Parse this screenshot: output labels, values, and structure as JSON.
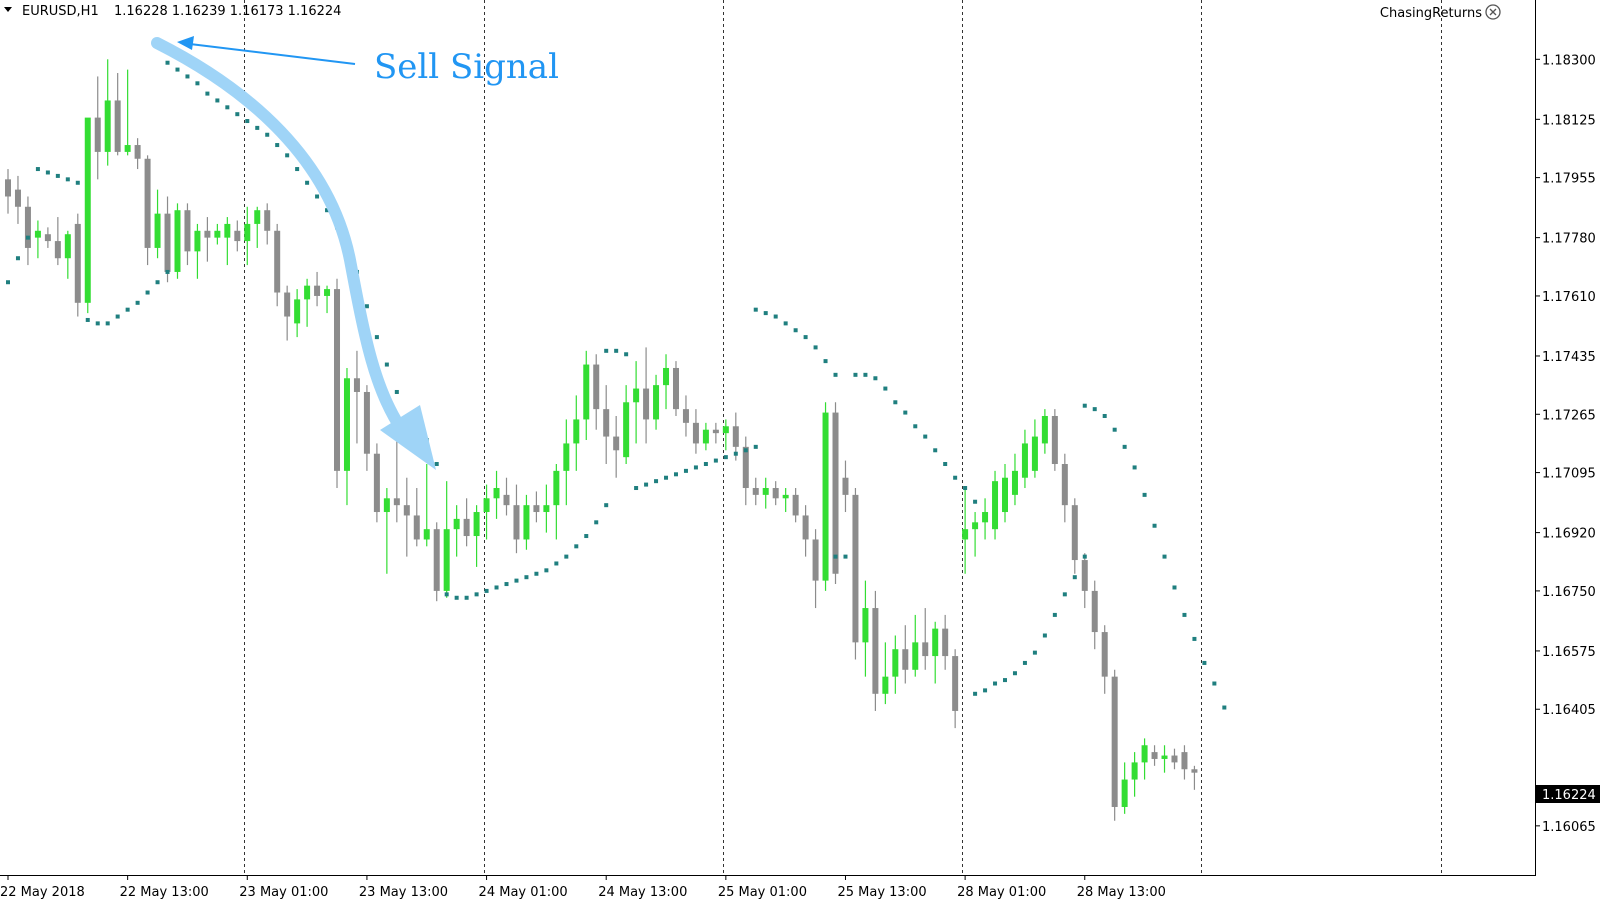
{
  "header": {
    "symbol": "EURUSD,H1",
    "ohlc": "1.16228 1.16239 1.16173 1.16224",
    "brand": "ChasingReturns"
  },
  "annotation": {
    "text": "Sell Signal"
  },
  "colors": {
    "bull": "#33dd33",
    "bear": "#8c8c8c",
    "sar": "#1f7f7f",
    "arrow": "#9fd4f7",
    "annotation": "#2196F3",
    "grid": "#333333"
  },
  "chart_data": {
    "type": "candlestick",
    "title": "",
    "ylim": [
      1.1598,
      1.184
    ],
    "y_ticks": [
      "1.18300",
      "1.18125",
      "1.17955",
      "1.17780",
      "1.17610",
      "1.17435",
      "1.17265",
      "1.17095",
      "1.16920",
      "1.16750",
      "1.16575",
      "1.16405",
      "1.16224",
      "1.16065"
    ],
    "current_price": "1.16224",
    "x_ticks": [
      {
        "label": "22 May 2018",
        "bar": 0
      },
      {
        "label": "22 May 13:00",
        "bar": 12
      },
      {
        "label": "23 May 01:00",
        "bar": 24
      },
      {
        "label": "23 May 13:00",
        "bar": 36
      },
      {
        "label": "24 May 01:00",
        "bar": 48
      },
      {
        "label": "24 May 13:00",
        "bar": 60
      },
      {
        "label": "25 May 01:00",
        "bar": 72
      },
      {
        "label": "25 May 13:00",
        "bar": 84
      },
      {
        "label": "28 May 01:00",
        "bar": 96
      },
      {
        "label": "28 May 13:00",
        "bar": 108
      }
    ],
    "period_separators": [
      23,
      47,
      71,
      95,
      119,
      143
    ],
    "bars_ohlc": [
      [
        1.1795,
        1.1798,
        1.1785,
        1.179
      ],
      [
        1.1792,
        1.1796,
        1.1782,
        1.1787
      ],
      [
        1.1787,
        1.179,
        1.177,
        1.1775
      ],
      [
        1.1778,
        1.1783,
        1.1772,
        1.178
      ],
      [
        1.1779,
        1.1781,
        1.1775,
        1.1777
      ],
      [
        1.1777,
        1.1784,
        1.177,
        1.1772
      ],
      [
        1.1772,
        1.178,
        1.1766,
        1.1779
      ],
      [
        1.1782,
        1.1785,
        1.1755,
        1.1759
      ],
      [
        1.1759,
        1.1812,
        1.1756,
        1.1813
      ],
      [
        1.1813,
        1.1825,
        1.1795,
        1.1803
      ],
      [
        1.1803,
        1.183,
        1.1799,
        1.1818
      ],
      [
        1.1818,
        1.1826,
        1.1802,
        1.1803
      ],
      [
        1.1803,
        1.1827,
        1.1802,
        1.1805
      ],
      [
        1.1805,
        1.1807,
        1.1798,
        1.1801
      ],
      [
        1.1801,
        1.1802,
        1.177,
        1.1775
      ],
      [
        1.1775,
        1.1792,
        1.1772,
        1.1785
      ],
      [
        1.1785,
        1.179,
        1.1765,
        1.1768
      ],
      [
        1.1768,
        1.1788,
        1.1766,
        1.1786
      ],
      [
        1.1786,
        1.1788,
        1.177,
        1.1774
      ],
      [
        1.1774,
        1.1782,
        1.1766,
        1.178
      ],
      [
        1.178,
        1.1784,
        1.1771,
        1.1778
      ],
      [
        1.1778,
        1.1782,
        1.1776,
        1.178
      ],
      [
        1.1778,
        1.1784,
        1.177,
        1.1782
      ],
      [
        1.178,
        1.1783,
        1.1774,
        1.1777
      ],
      [
        1.1777,
        1.1787,
        1.177,
        1.1782
      ],
      [
        1.1782,
        1.1787,
        1.1775,
        1.1786
      ],
      [
        1.1786,
        1.1788,
        1.1776,
        1.178
      ],
      [
        1.178,
        1.1782,
        1.1758,
        1.1762
      ],
      [
        1.1762,
        1.1764,
        1.1748,
        1.1755
      ],
      [
        1.1753,
        1.1763,
        1.1749,
        1.176
      ],
      [
        1.176,
        1.1766,
        1.1752,
        1.1764
      ],
      [
        1.1764,
        1.1768,
        1.1758,
        1.1761
      ],
      [
        1.1761,
        1.1764,
        1.1756,
        1.1763
      ],
      [
        1.1763,
        1.1766,
        1.1705,
        1.171
      ],
      [
        1.171,
        1.174,
        1.17,
        1.1737
      ],
      [
        1.1737,
        1.1745,
        1.1718,
        1.1733
      ],
      [
        1.1733,
        1.1735,
        1.171,
        1.1715
      ],
      [
        1.1715,
        1.1718,
        1.1695,
        1.1698
      ],
      [
        1.1698,
        1.1705,
        1.168,
        1.1702
      ],
      [
        1.1702,
        1.1722,
        1.1695,
        1.17
      ],
      [
        1.17,
        1.1708,
        1.1685,
        1.1697
      ],
      [
        1.1697,
        1.1705,
        1.1688,
        1.169
      ],
      [
        1.169,
        1.1712,
        1.1688,
        1.1693
      ],
      [
        1.1693,
        1.1695,
        1.1672,
        1.1675
      ],
      [
        1.1675,
        1.1707,
        1.1673,
        1.1693
      ],
      [
        1.1693,
        1.17,
        1.1685,
        1.1696
      ],
      [
        1.1696,
        1.1702,
        1.1688,
        1.1691
      ],
      [
        1.1691,
        1.17,
        1.1682,
        1.1698
      ],
      [
        1.1698,
        1.1706,
        1.169,
        1.1702
      ],
      [
        1.1702,
        1.171,
        1.1696,
        1.1705
      ],
      [
        1.1703,
        1.1708,
        1.1697,
        1.17
      ],
      [
        1.17,
        1.1706,
        1.1686,
        1.169
      ],
      [
        1.169,
        1.1703,
        1.1687,
        1.17
      ],
      [
        1.17,
        1.1704,
        1.1695,
        1.1698
      ],
      [
        1.1698,
        1.1706,
        1.1692,
        1.17
      ],
      [
        1.17,
        1.1712,
        1.169,
        1.171
      ],
      [
        1.171,
        1.1725,
        1.17,
        1.1718
      ],
      [
        1.1718,
        1.1732,
        1.171,
        1.1725
      ],
      [
        1.1725,
        1.1745,
        1.1719,
        1.1741
      ],
      [
        1.1741,
        1.1744,
        1.1722,
        1.1728
      ],
      [
        1.1728,
        1.1735,
        1.1712,
        1.172
      ],
      [
        1.172,
        1.1726,
        1.1708,
        1.1716
      ],
      [
        1.1714,
        1.1735,
        1.1712,
        1.173
      ],
      [
        1.173,
        1.1742,
        1.1718,
        1.1734
      ],
      [
        1.1734,
        1.1746,
        1.1718,
        1.1725
      ],
      [
        1.1725,
        1.1738,
        1.1722,
        1.1735
      ],
      [
        1.1735,
        1.1744,
        1.1728,
        1.174
      ],
      [
        1.174,
        1.1742,
        1.1726,
        1.1728
      ],
      [
        1.1728,
        1.1732,
        1.172,
        1.1724
      ],
      [
        1.1724,
        1.1728,
        1.1715,
        1.1718
      ],
      [
        1.1718,
        1.1724,
        1.1716,
        1.1722
      ],
      [
        1.1722,
        1.1724,
        1.1718,
        1.1721
      ],
      [
        1.1721,
        1.1725,
        1.1716,
        1.1723
      ],
      [
        1.1723,
        1.1727,
        1.1713,
        1.1717
      ],
      [
        1.1717,
        1.172,
        1.17,
        1.1705
      ],
      [
        1.1705,
        1.1708,
        1.17,
        1.1703
      ],
      [
        1.1703,
        1.1708,
        1.1699,
        1.1705
      ],
      [
        1.1705,
        1.1707,
        1.17,
        1.1702
      ],
      [
        1.1702,
        1.1705,
        1.1698,
        1.1703
      ],
      [
        1.1703,
        1.1705,
        1.1695,
        1.1697
      ],
      [
        1.1697,
        1.17,
        1.1685,
        1.169
      ],
      [
        1.169,
        1.1693,
        1.167,
        1.1678
      ],
      [
        1.1678,
        1.173,
        1.1675,
        1.1727
      ],
      [
        1.1727,
        1.173,
        1.1677,
        1.168
      ],
      [
        1.1708,
        1.1713,
        1.1698,
        1.1703
      ],
      [
        1.1703,
        1.1705,
        1.1655,
        1.166
      ],
      [
        1.166,
        1.1678,
        1.165,
        1.167
      ],
      [
        1.167,
        1.1675,
        1.164,
        1.1645
      ],
      [
        1.1645,
        1.166,
        1.1642,
        1.165
      ],
      [
        1.165,
        1.1662,
        1.1645,
        1.1658
      ],
      [
        1.1658,
        1.1665,
        1.1648,
        1.1652
      ],
      [
        1.1652,
        1.1668,
        1.165,
        1.166
      ],
      [
        1.166,
        1.167,
        1.1652,
        1.1656
      ],
      [
        1.1656,
        1.1666,
        1.1648,
        1.1664
      ],
      [
        1.1664,
        1.1668,
        1.1652,
        1.1656
      ],
      [
        1.1656,
        1.1658,
        1.1635,
        1.164
      ],
      [
        1.169,
        1.1705,
        1.168,
        1.1693
      ],
      [
        1.1693,
        1.1698,
        1.1685,
        1.1695
      ],
      [
        1.1695,
        1.1702,
        1.169,
        1.1698
      ],
      [
        1.1693,
        1.171,
        1.169,
        1.1707
      ],
      [
        1.1698,
        1.1712,
        1.1695,
        1.1708
      ],
      [
        1.1703,
        1.1715,
        1.17,
        1.171
      ],
      [
        1.1708,
        1.1722,
        1.1705,
        1.1718
      ],
      [
        1.171,
        1.1725,
        1.1708,
        1.172
      ],
      [
        1.1718,
        1.1728,
        1.1715,
        1.1726
      ],
      [
        1.1726,
        1.1728,
        1.171,
        1.1712
      ],
      [
        1.1712,
        1.1715,
        1.1695,
        1.17
      ],
      [
        1.17,
        1.1702,
        1.168,
        1.1684
      ],
      [
        1.1684,
        1.1686,
        1.167,
        1.1675
      ],
      [
        1.1675,
        1.1678,
        1.1658,
        1.1663
      ],
      [
        1.1663,
        1.1665,
        1.1645,
        1.165
      ],
      [
        1.165,
        1.1652,
        1.1608,
        1.1612
      ],
      [
        1.1612,
        1.1625,
        1.161,
        1.162
      ],
      [
        1.162,
        1.1628,
        1.1615,
        1.1625
      ],
      [
        1.1625,
        1.1632,
        1.162,
        1.163
      ],
      [
        1.1628,
        1.163,
        1.1624,
        1.1626
      ],
      [
        1.1626,
        1.163,
        1.1622,
        1.1627
      ],
      [
        1.1627,
        1.1629,
        1.1623,
        1.1625
      ],
      [
        1.1628,
        1.163,
        1.162,
        1.1623
      ],
      [
        1.1623,
        1.1624,
        1.1617,
        1.1622
      ]
    ],
    "sar_points": [
      [
        0,
        1.1765
      ],
      [
        1,
        1.1772
      ],
      [
        2,
        1.1778
      ],
      [
        3,
        1.1798
      ],
      [
        4,
        1.1797
      ],
      [
        5,
        1.1796
      ],
      [
        6,
        1.1795
      ],
      [
        7,
        1.1794
      ],
      [
        8,
        1.1754
      ],
      [
        9,
        1.1753
      ],
      [
        10,
        1.1753
      ],
      [
        11,
        1.1755
      ],
      [
        12,
        1.1757
      ],
      [
        13,
        1.1759
      ],
      [
        14,
        1.1762
      ],
      [
        15,
        1.1765
      ],
      [
        16,
        1.1768
      ],
      [
        16,
        1.1829
      ],
      [
        17,
        1.1827
      ],
      [
        18,
        1.1825
      ],
      [
        19,
        1.1823
      ],
      [
        20,
        1.182
      ],
      [
        21,
        1.1818
      ],
      [
        22,
        1.1816
      ],
      [
        23,
        1.1814
      ],
      [
        24,
        1.1812
      ],
      [
        25,
        1.181
      ],
      [
        26,
        1.1808
      ],
      [
        27,
        1.1805
      ],
      [
        28,
        1.1802
      ],
      [
        29,
        1.1798
      ],
      [
        30,
        1.1794
      ],
      [
        31,
        1.179
      ],
      [
        32,
        1.1786
      ],
      [
        33,
        1.1781
      ],
      [
        34,
        1.1776
      ],
      [
        35,
        1.1768
      ],
      [
        36,
        1.1758
      ],
      [
        37,
        1.1749
      ],
      [
        38,
        1.1741
      ],
      [
        39,
        1.1733
      ],
      [
        40,
        1.1725
      ],
      [
        41,
        1.1719
      ],
      [
        42,
        1.1719
      ],
      [
        43,
        1.1712
      ],
      [
        44,
        1.1674
      ],
      [
        45,
        1.1673
      ],
      [
        46,
        1.1673
      ],
      [
        47,
        1.1674
      ],
      [
        48,
        1.1675
      ],
      [
        49,
        1.1676
      ],
      [
        50,
        1.1677
      ],
      [
        51,
        1.1678
      ],
      [
        52,
        1.1679
      ],
      [
        53,
        1.168
      ],
      [
        54,
        1.1681
      ],
      [
        55,
        1.1683
      ],
      [
        56,
        1.1685
      ],
      [
        57,
        1.1688
      ],
      [
        58,
        1.1691
      ],
      [
        59,
        1.1695
      ],
      [
        60,
        1.17
      ],
      [
        60,
        1.1745
      ],
      [
        61,
        1.1745
      ],
      [
        62,
        1.1744
      ],
      [
        63,
        1.1705
      ],
      [
        64,
        1.1706
      ],
      [
        65,
        1.1707
      ],
      [
        66,
        1.1708
      ],
      [
        67,
        1.1709
      ],
      [
        68,
        1.171
      ],
      [
        69,
        1.1711
      ],
      [
        70,
        1.1712
      ],
      [
        71,
        1.1713
      ],
      [
        72,
        1.1714
      ],
      [
        73,
        1.1715
      ],
      [
        74,
        1.1716
      ],
      [
        75,
        1.1717
      ],
      [
        75,
        1.1757
      ],
      [
        76,
        1.1756
      ],
      [
        77,
        1.1755
      ],
      [
        78,
        1.1753
      ],
      [
        79,
        1.1751
      ],
      [
        80,
        1.1749
      ],
      [
        81,
        1.1746
      ],
      [
        82,
        1.1742
      ],
      [
        83,
        1.1738
      ],
      [
        83,
        1.1685
      ],
      [
        84,
        1.1685
      ],
      [
        85,
        1.1738
      ],
      [
        86,
        1.1738
      ],
      [
        87,
        1.1737
      ],
      [
        88,
        1.1734
      ],
      [
        89,
        1.173
      ],
      [
        90,
        1.1727
      ],
      [
        91,
        1.1723
      ],
      [
        92,
        1.172
      ],
      [
        93,
        1.1716
      ],
      [
        94,
        1.1712
      ],
      [
        95,
        1.1708
      ],
      [
        96,
        1.1705
      ],
      [
        97,
        1.1701
      ],
      [
        97,
        1.1645
      ],
      [
        98,
        1.1646
      ],
      [
        99,
        1.1648
      ],
      [
        100,
        1.1649
      ],
      [
        101,
        1.1651
      ],
      [
        102,
        1.1654
      ],
      [
        103,
        1.1657
      ],
      [
        104,
        1.1662
      ],
      [
        105,
        1.1668
      ],
      [
        106,
        1.1674
      ],
      [
        107,
        1.1679
      ],
      [
        108,
        1.1685
      ],
      [
        108,
        1.1729
      ],
      [
        109,
        1.1728
      ],
      [
        110,
        1.1726
      ],
      [
        111,
        1.1722
      ],
      [
        112,
        1.1717
      ],
      [
        113,
        1.1711
      ],
      [
        114,
        1.1703
      ],
      [
        115,
        1.1694
      ],
      [
        116,
        1.1685
      ],
      [
        117,
        1.1676
      ],
      [
        118,
        1.1668
      ],
      [
        119,
        1.1661
      ],
      [
        120,
        1.1654
      ],
      [
        121,
        1.1648
      ],
      [
        122,
        1.1641
      ]
    ],
    "grid": false,
    "legend": "none"
  }
}
